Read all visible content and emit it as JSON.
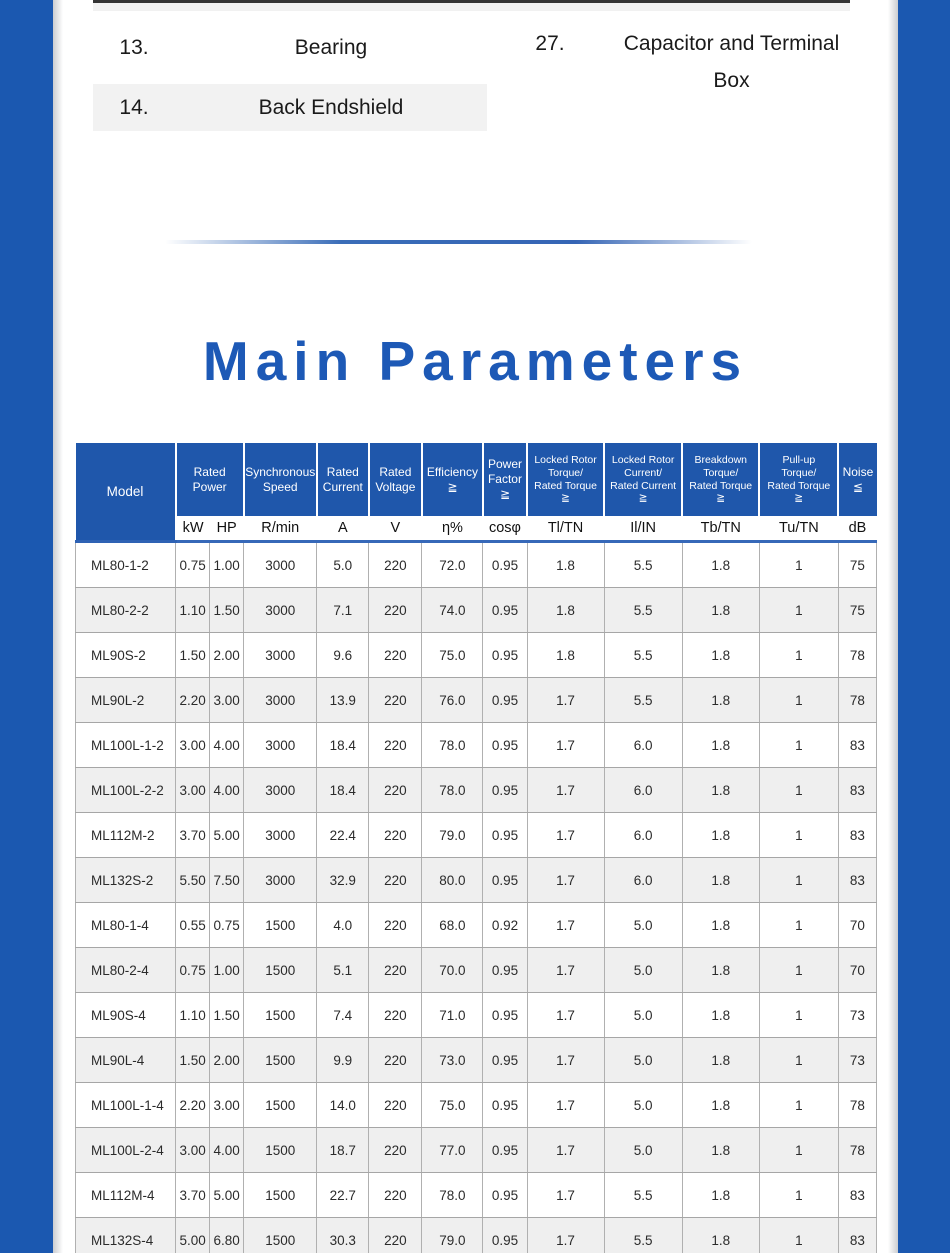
{
  "parts_list": {
    "items": [
      {
        "number": "13.",
        "label": "Bearing"
      },
      {
        "number": "14.",
        "label": "Back Endshield"
      },
      {
        "number": "27.",
        "label": "Capacitor and Terminal Box"
      }
    ]
  },
  "section": {
    "title": "Main Parameters"
  },
  "colors": {
    "side_band_blue": "#1b58b0",
    "table_header_blue": "#1f57ab",
    "title_blue": "#1d59b6",
    "alt_row_gray": "#efefef",
    "divider_blue": "#3a6db8"
  },
  "table": {
    "model_header": "Model",
    "groups": [
      {
        "lines": [
          "Rated",
          "Power"
        ],
        "units": [
          "kW",
          "HP"
        ]
      },
      {
        "lines": [
          "Synchronous",
          "Speed"
        ],
        "units": [
          "R/min"
        ]
      },
      {
        "lines": [
          "Rated",
          "Current"
        ],
        "units": [
          "A"
        ]
      },
      {
        "lines": [
          "Rated",
          "Voltage"
        ],
        "units": [
          "V"
        ]
      },
      {
        "lines": [
          "Efficiency",
          "≧"
        ],
        "units": [
          "η%"
        ]
      },
      {
        "lines": [
          "Power",
          "Factor",
          "≧"
        ],
        "units": [
          "cosφ"
        ]
      },
      {
        "lines": [
          "Locked Rotor",
          "Torque/",
          "Rated Torque",
          "≧"
        ],
        "units": [
          "Tl/TN"
        ]
      },
      {
        "lines": [
          "Locked Rotor",
          "Current/",
          "Rated Current",
          "≧"
        ],
        "units": [
          "Il/IN"
        ]
      },
      {
        "lines": [
          "Breakdown",
          "Torque/",
          "Rated Torque",
          "≧"
        ],
        "units": [
          "Tb/TN"
        ]
      },
      {
        "lines": [
          "Pull-up",
          "Torque/",
          "Rated Torque",
          "≧"
        ],
        "units": [
          "Tu/TN"
        ]
      },
      {
        "lines": [
          "Noise",
          "≦"
        ],
        "units": [
          "dB"
        ]
      }
    ],
    "rows": [
      [
        "ML80-1-2",
        "0.75",
        "1.00",
        "3000",
        "5.0",
        "220",
        "72.0",
        "0.95",
        "1.8",
        "5.5",
        "1.8",
        "1",
        "75"
      ],
      [
        "ML80-2-2",
        "1.10",
        "1.50",
        "3000",
        "7.1",
        "220",
        "74.0",
        "0.95",
        "1.8",
        "5.5",
        "1.8",
        "1",
        "75"
      ],
      [
        "ML90S-2",
        "1.50",
        "2.00",
        "3000",
        "9.6",
        "220",
        "75.0",
        "0.95",
        "1.8",
        "5.5",
        "1.8",
        "1",
        "78"
      ],
      [
        "ML90L-2",
        "2.20",
        "3.00",
        "3000",
        "13.9",
        "220",
        "76.0",
        "0.95",
        "1.7",
        "5.5",
        "1.8",
        "1",
        "78"
      ],
      [
        "ML100L-1-2",
        "3.00",
        "4.00",
        "3000",
        "18.4",
        "220",
        "78.0",
        "0.95",
        "1.7",
        "6.0",
        "1.8",
        "1",
        "83"
      ],
      [
        "ML100L-2-2",
        "3.00",
        "4.00",
        "3000",
        "18.4",
        "220",
        "78.0",
        "0.95",
        "1.7",
        "6.0",
        "1.8",
        "1",
        "83"
      ],
      [
        "ML112M-2",
        "3.70",
        "5.00",
        "3000",
        "22.4",
        "220",
        "79.0",
        "0.95",
        "1.7",
        "6.0",
        "1.8",
        "1",
        "83"
      ],
      [
        "ML132S-2",
        "5.50",
        "7.50",
        "3000",
        "32.9",
        "220",
        "80.0",
        "0.95",
        "1.7",
        "6.0",
        "1.8",
        "1",
        "83"
      ],
      [
        "ML80-1-4",
        "0.55",
        "0.75",
        "1500",
        "4.0",
        "220",
        "68.0",
        "0.92",
        "1.7",
        "5.0",
        "1.8",
        "1",
        "70"
      ],
      [
        "ML80-2-4",
        "0.75",
        "1.00",
        "1500",
        "5.1",
        "220",
        "70.0",
        "0.95",
        "1.7",
        "5.0",
        "1.8",
        "1",
        "70"
      ],
      [
        "ML90S-4",
        "1.10",
        "1.50",
        "1500",
        "7.4",
        "220",
        "71.0",
        "0.95",
        "1.7",
        "5.0",
        "1.8",
        "1",
        "73"
      ],
      [
        "ML90L-4",
        "1.50",
        "2.00",
        "1500",
        "9.9",
        "220",
        "73.0",
        "0.95",
        "1.7",
        "5.0",
        "1.8",
        "1",
        "73"
      ],
      [
        "ML100L-1-4",
        "2.20",
        "3.00",
        "1500",
        "14.0",
        "220",
        "75.0",
        "0.95",
        "1.7",
        "5.0",
        "1.8",
        "1",
        "78"
      ],
      [
        "ML100L-2-4",
        "3.00",
        "4.00",
        "1500",
        "18.7",
        "220",
        "77.0",
        "0.95",
        "1.7",
        "5.0",
        "1.8",
        "1",
        "78"
      ],
      [
        "ML112M-4",
        "3.70",
        "5.00",
        "1500",
        "22.7",
        "220",
        "78.0",
        "0.95",
        "1.7",
        "5.5",
        "1.8",
        "1",
        "83"
      ],
      [
        "ML132S-4",
        "5.00",
        "6.80",
        "1500",
        "30.3",
        "220",
        "79.0",
        "0.95",
        "1.7",
        "5.5",
        "1.8",
        "1",
        "83"
      ]
    ]
  }
}
